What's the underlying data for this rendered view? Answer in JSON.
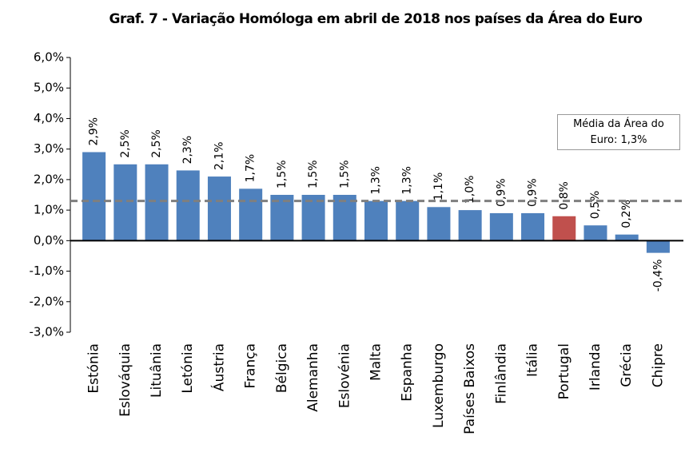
{
  "chart_data": {
    "type": "bar",
    "title": "Graf. 7 - Variação Homóloga em abril de 2018 nos países da Área do Euro",
    "categories": [
      "Estónia",
      "Eslováquia",
      "Lituânia",
      "Letónia",
      "Áustria",
      "França",
      "Bélgica",
      "Alemanha",
      "Eslovénia",
      "Malta",
      "Espanha",
      "Luxemburgo",
      "Países Baixos",
      "Finlândia",
      "Itália",
      "Portugal",
      "Irlanda",
      "Grécia",
      "Chipre"
    ],
    "values": [
      2.9,
      2.5,
      2.5,
      2.3,
      2.1,
      1.7,
      1.5,
      1.5,
      1.5,
      1.3,
      1.3,
      1.1,
      1.0,
      0.9,
      0.9,
      0.8,
      0.5,
      0.2,
      -0.4
    ],
    "value_labels": [
      "2,9%",
      "2,5%",
      "2,5%",
      "2,3%",
      "2,1%",
      "1,7%",
      "1,5%",
      "1,5%",
      "1,5%",
      "1,3%",
      "1,3%",
      "1,1%",
      "1,0%",
      "0,9%",
      "0,9%",
      "0,8%",
      "0,5%",
      "0,2%",
      "-0,4%"
    ],
    "colors": [
      "#4f81bd",
      "#4f81bd",
      "#4f81bd",
      "#4f81bd",
      "#4f81bd",
      "#4f81bd",
      "#4f81bd",
      "#4f81bd",
      "#4f81bd",
      "#4f81bd",
      "#4f81bd",
      "#4f81bd",
      "#4f81bd",
      "#4f81bd",
      "#4f81bd",
      "#c0504d",
      "#4f81bd",
      "#4f81bd",
      "#4f81bd"
    ],
    "ylim": [
      -3,
      6
    ],
    "yticks": [
      {
        "value": -3,
        "label": "-3,0%"
      },
      {
        "value": -2,
        "label": "-2,0%"
      },
      {
        "value": -1,
        "label": "-1,0%"
      },
      {
        "value": 0,
        "label": "0,0%"
      },
      {
        "value": 1,
        "label": "1,0%"
      },
      {
        "value": 2,
        "label": "2,0%"
      },
      {
        "value": 3,
        "label": "3,0%"
      },
      {
        "value": 4,
        "label": "4,0%"
      },
      {
        "value": 5,
        "label": "5,0%"
      },
      {
        "value": 6,
        "label": "6,0%"
      }
    ],
    "grid": false,
    "reference_line": {
      "value": 1.3,
      "label": "Média da Área do Euro: 1,3%",
      "color": "#7f7f7f"
    }
  }
}
